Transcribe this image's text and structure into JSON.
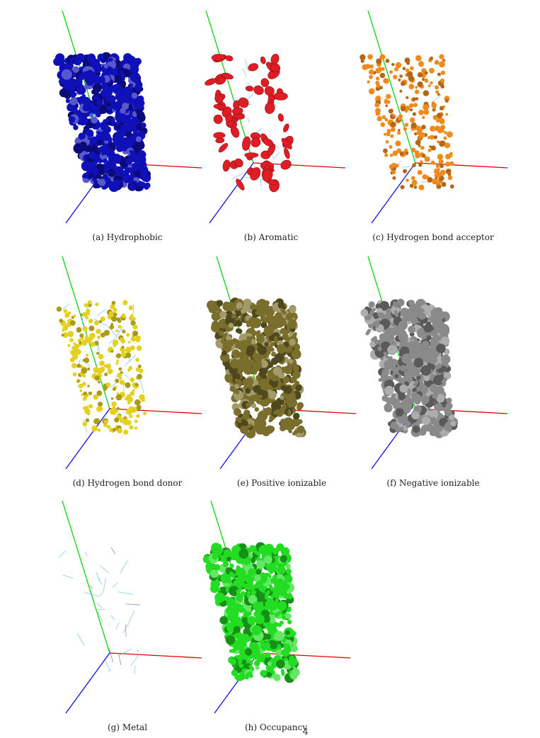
{
  "figure": {
    "panels": [
      {
        "id": "a",
        "caption": "(a) Hydrophobic",
        "render": "surface",
        "color": "#1010b8"
      },
      {
        "id": "b",
        "caption": "(b) Aromatic",
        "render": "blobs",
        "color": "#e01c24"
      },
      {
        "id": "c",
        "caption": "(c) Hydrogen bond acceptor",
        "render": "dots",
        "color": "#f08a1c"
      },
      {
        "id": "d",
        "caption": "(d) Hydrogen bond donor",
        "render": "dots",
        "color": "#e3d020"
      },
      {
        "id": "e",
        "caption": "(e) Positive ionizable",
        "render": "surface",
        "color": "#7a6e2c"
      },
      {
        "id": "f",
        "caption": "(f) Negative ionizable",
        "render": "surface",
        "color": "#8a8a8a"
      },
      {
        "id": "g",
        "caption": "(g) Metal",
        "render": "wire",
        "color": "#9bc9e6"
      },
      {
        "id": "h",
        "caption": "(h) Occupancy",
        "render": "surface",
        "color": "#22dd22"
      }
    ],
    "axis_colors": {
      "x": "#e00000",
      "y": "#10d010",
      "z": "#1010e0"
    },
    "wire_color": "#7fc4e8"
  },
  "page_number": "4"
}
